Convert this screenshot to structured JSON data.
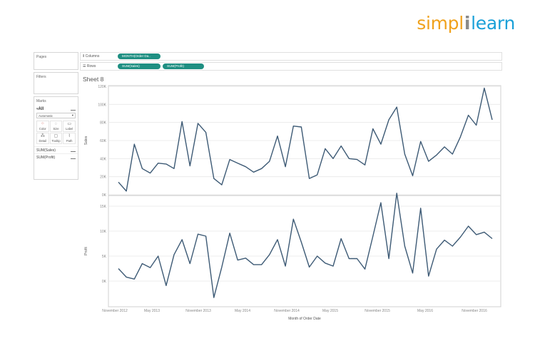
{
  "brand": {
    "logo_simpl": "simpl",
    "logo_bar": "i",
    "logo_learn": "learn"
  },
  "panes": {
    "pages": "Pages",
    "filters": "Filters",
    "marks": {
      "title": "Marks",
      "all_label": "All",
      "dropdown_value": "Automatic",
      "buttons": [
        {
          "label": "Color",
          "icon": "color-dots-icon"
        },
        {
          "label": "Size",
          "icon": "size-icon"
        },
        {
          "label": "Label",
          "icon": "label-icon"
        },
        {
          "label": "Detail",
          "icon": "detail-icon"
        },
        {
          "label": "Tooltip",
          "icon": "tooltip-icon"
        },
        {
          "label": "Path",
          "icon": "path-icon"
        }
      ],
      "fields": [
        "SUM(Sales)",
        "SUM(Profit)"
      ]
    }
  },
  "shelves": {
    "columns_label": "Columns",
    "rows_label": "Rows",
    "columns_pill": "MONTH(Order Da..",
    "rows_pills": [
      "SUM(Sales)",
      "SUM(Profit)"
    ]
  },
  "sheet_title": "Sheet 8",
  "colors": {
    "line": "#3d5a75",
    "pill": "#1f8f82",
    "grid": "#e8e8e8"
  },
  "chart_data": [
    {
      "type": "line",
      "ylabel": "Sales",
      "ylim": [
        0,
        120000
      ],
      "yticks": [
        "0K",
        "20K",
        "40K",
        "60K",
        "80K",
        "100K",
        "120K"
      ],
      "series": [
        {
          "values": [
            14000,
            4000,
            56000,
            29000,
            24000,
            35000,
            34000,
            29000,
            81000,
            32000,
            79000,
            69000,
            18000,
            11000,
            39000,
            35000,
            31000,
            25000,
            29000,
            37000,
            65000,
            31000,
            76000,
            75000,
            18000,
            22000,
            51000,
            40000,
            54000,
            40000,
            39000,
            33000,
            73000,
            56000,
            83000,
            97000,
            45000,
            21000,
            59000,
            37000,
            44000,
            53000,
            45000,
            64000,
            88000,
            77000,
            118000,
            83000
          ]
        }
      ]
    },
    {
      "type": "line",
      "xlabel": "Month of Order Date",
      "ylabel": "Profit",
      "ylim": [
        -5000,
        17000
      ],
      "yticks": [
        "0K",
        "5K",
        "10K",
        "15K"
      ],
      "xticks": [
        "November 2012",
        "May 2013",
        "November 2013",
        "May 2014",
        "November 2014",
        "May 2015",
        "November 2015",
        "May 2016",
        "November 2016"
      ],
      "series": [
        {
          "values": [
            2500,
            800,
            400,
            3500,
            2700,
            5000,
            -900,
            5300,
            8300,
            3500,
            9400,
            9000,
            -3300,
            2800,
            9600,
            4200,
            4600,
            3300,
            3300,
            5300,
            8300,
            3000,
            12400,
            7800,
            2800,
            5000,
            3600,
            3000,
            8500,
            4500,
            4500,
            2400,
            9000,
            15700,
            4500,
            17600,
            7000,
            1600,
            14600,
            1000,
            6400,
            8200,
            7000,
            8800,
            11000,
            9300,
            9800,
            8500
          ]
        }
      ]
    }
  ]
}
